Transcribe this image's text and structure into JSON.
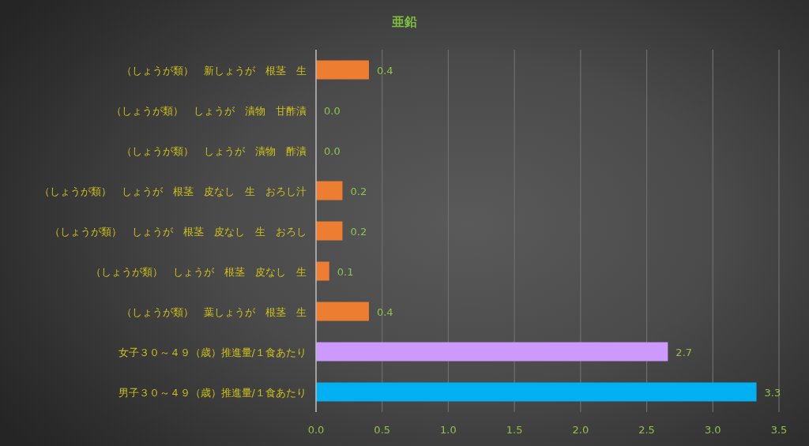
{
  "chart_data": {
    "type": "bar",
    "orientation": "horizontal",
    "title": "亜鉛",
    "categories": [
      "（しょうが類）　新しょうが　根茎　生",
      "（しょうが類）　しょうが　漬物　甘酢漬",
      "（しょうが類）　しょうが　漬物　酢漬",
      "（しょうが類）　しょうが　根茎　皮なし　生　おろし汁",
      "（しょうが類）　しょうが　根茎　皮なし　生　おろし",
      "（しょうが類）　しょうが　根茎　皮なし　生",
      "（しょうが類）　葉しょうが　根茎　生",
      "女子３０～４９（歳）推進量/１食あたり",
      "男子３０～４９（歳）推進量/１食あたり"
    ],
    "values": [
      0.4,
      0,
      0,
      0.2,
      0.2,
      0.1,
      0.4,
      2.66,
      3.33
    ],
    "colors": [
      "#ed7d31",
      "#ed7d31",
      "#ed7d31",
      "#ed7d31",
      "#ed7d31",
      "#ed7d31",
      "#ed7d31",
      "#cc99ff",
      "#00b0f0"
    ],
    "value_labels": [
      "0.4",
      "0.0",
      "0.0",
      "0.2",
      "0.2",
      "0.1",
      "0.4",
      "2.7",
      "3.3"
    ],
    "xlim": [
      0,
      3.5
    ],
    "xticks": [
      {
        "value": 0,
        "label": "0.0"
      },
      0.5,
      {
        "value": 1,
        "label": "1.0"
      },
      1.5,
      {
        "value": 2,
        "label": "2.0"
      },
      2.5,
      {
        "value": 3,
        "label": "3.0"
      },
      3.5
    ],
    "grid": "x"
  }
}
